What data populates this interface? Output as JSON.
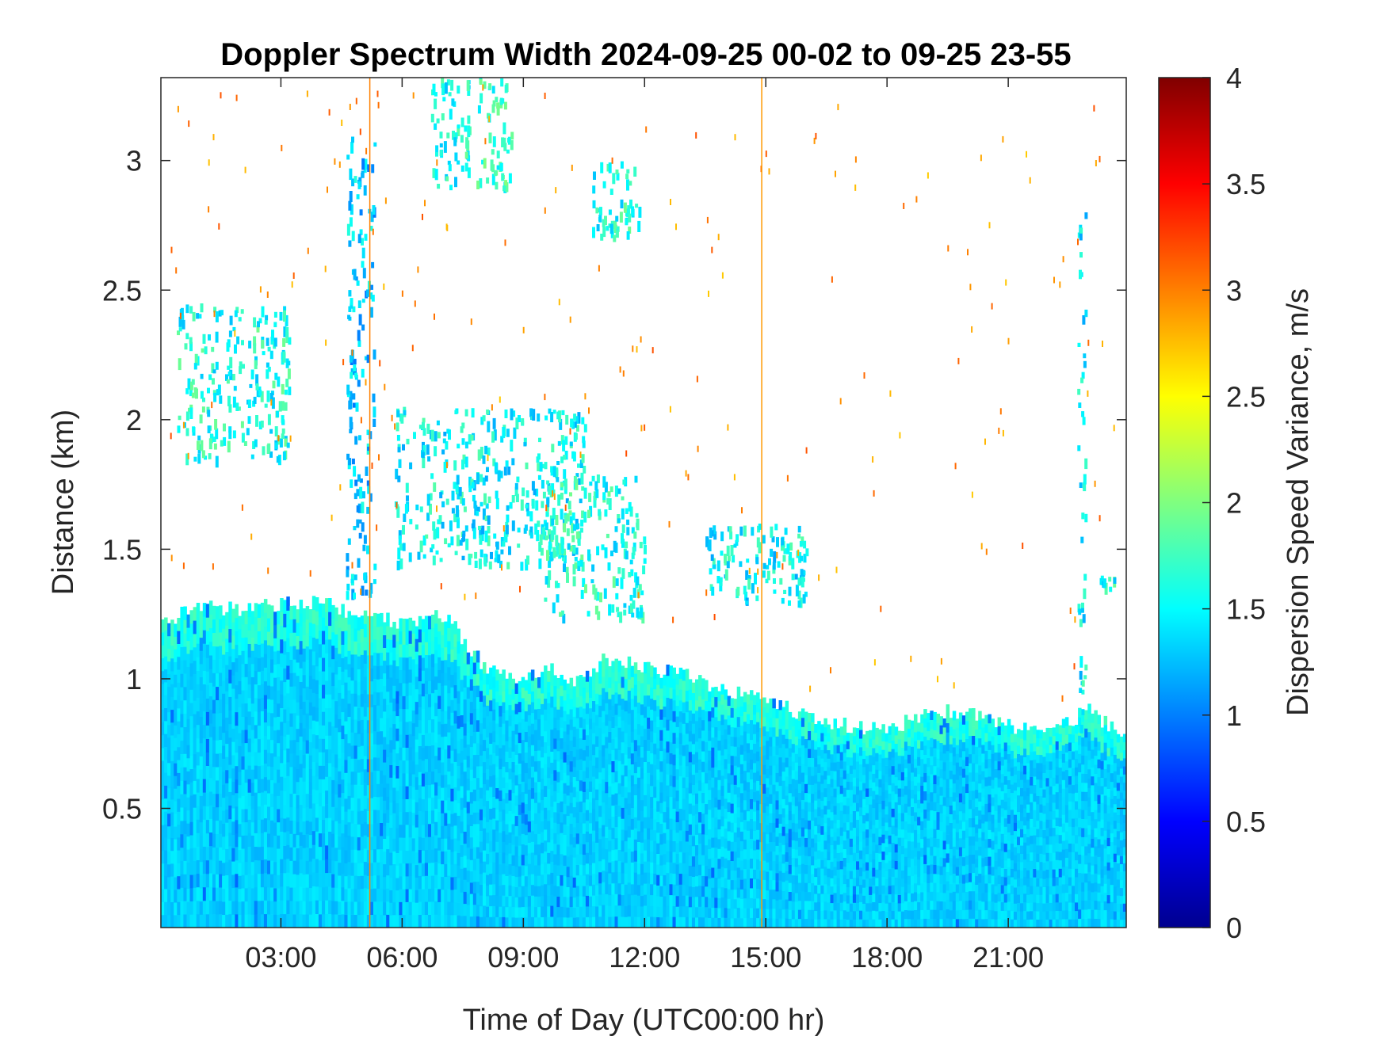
{
  "chart_data": {
    "type": "heatmap",
    "title": "Doppler Spectrum Width 2024-09-25 00-02 to 09-25 23-55",
    "xlabel": "Time of Day (UTC00:00 hr)",
    "ylabel": "Distance (km)",
    "colorbar_label": "Dispersion Speed Variance, m/s",
    "colormap": "jet",
    "colormap_stops": [
      "#00008f",
      "#0000ff",
      "#00ffff",
      "#ffff00",
      "#ff0000",
      "#800000"
    ],
    "xlim_hours": [
      0.03,
      23.92
    ],
    "ylim_km": [
      0.04,
      3.32
    ],
    "clim": [
      0,
      4
    ],
    "x_ticks": [
      {
        "hour": 3,
        "label": "03:00"
      },
      {
        "hour": 6,
        "label": "06:00"
      },
      {
        "hour": 9,
        "label": "09:00"
      },
      {
        "hour": 12,
        "label": "12:00"
      },
      {
        "hour": 15,
        "label": "15:00"
      },
      {
        "hour": 18,
        "label": "18:00"
      },
      {
        "hour": 21,
        "label": "21:00"
      }
    ],
    "y_ticks": [
      {
        "value": 0.5,
        "label": "0.5"
      },
      {
        "value": 1,
        "label": "1"
      },
      {
        "value": 1.5,
        "label": "1.5"
      },
      {
        "value": 2,
        "label": "2"
      },
      {
        "value": 2.5,
        "label": "2.5"
      },
      {
        "value": 3,
        "label": "3"
      }
    ],
    "colorbar_ticks": [
      {
        "value": 0,
        "label": "0"
      },
      {
        "value": 0.5,
        "label": "0.5"
      },
      {
        "value": 1,
        "label": "1"
      },
      {
        "value": 1.5,
        "label": "1.5"
      },
      {
        "value": 2,
        "label": "2"
      },
      {
        "value": 2.5,
        "label": "2.5"
      },
      {
        "value": 3,
        "label": "3"
      },
      {
        "value": 3.5,
        "label": "3.5"
      },
      {
        "value": 4,
        "label": "4"
      }
    ],
    "boundary_layer_top_km": [
      {
        "hour": 0.03,
        "km": 1.22
      },
      {
        "hour": 1.0,
        "km": 1.28
      },
      {
        "hour": 2.0,
        "km": 1.27
      },
      {
        "hour": 3.0,
        "km": 1.29
      },
      {
        "hour": 4.0,
        "km": 1.3
      },
      {
        "hour": 5.0,
        "km": 1.24
      },
      {
        "hour": 6.0,
        "km": 1.22
      },
      {
        "hour": 7.0,
        "km": 1.25
      },
      {
        "hour": 8.0,
        "km": 1.05
      },
      {
        "hour": 8.8,
        "km": 0.98
      },
      {
        "hour": 9.5,
        "km": 1.05
      },
      {
        "hour": 10.3,
        "km": 0.99
      },
      {
        "hour": 11.0,
        "km": 1.08
      },
      {
        "hour": 12.0,
        "km": 1.04
      },
      {
        "hour": 13.0,
        "km": 1.02
      },
      {
        "hour": 14.0,
        "km": 0.95
      },
      {
        "hour": 15.0,
        "km": 0.93
      },
      {
        "hour": 16.0,
        "km": 0.85
      },
      {
        "hour": 17.0,
        "km": 0.82
      },
      {
        "hour": 18.0,
        "km": 0.8
      },
      {
        "hour": 19.0,
        "km": 0.88
      },
      {
        "hour": 20.0,
        "km": 0.87
      },
      {
        "hour": 21.0,
        "km": 0.82
      },
      {
        "hour": 22.0,
        "km": 0.8
      },
      {
        "hour": 23.0,
        "km": 0.88
      },
      {
        "hour": 23.92,
        "km": 0.75
      }
    ],
    "cloud_layers": [
      {
        "hour_start": 0.4,
        "hour_end": 3.2,
        "km_bottom": 1.85,
        "km_top": 2.45,
        "variance": 1.6
      },
      {
        "hour_start": 4.6,
        "hour_end": 5.3,
        "km_bottom": 1.3,
        "km_top": 3.1,
        "variance": 1.3
      },
      {
        "hour_start": 5.8,
        "hour_end": 10.5,
        "km_bottom": 1.45,
        "km_top": 2.05,
        "variance": 1.5
      },
      {
        "hour_start": 9.5,
        "hour_end": 12.0,
        "km_bottom": 1.25,
        "km_top": 1.8,
        "variance": 1.6
      },
      {
        "hour_start": 6.7,
        "hour_end": 7.7,
        "km_bottom": 2.9,
        "km_top": 3.32,
        "variance": 1.6
      },
      {
        "hour_start": 7.8,
        "hour_end": 8.7,
        "km_bottom": 2.9,
        "km_top": 3.32,
        "variance": 1.7
      },
      {
        "hour_start": 10.7,
        "hour_end": 11.9,
        "km_bottom": 2.7,
        "km_top": 3.0,
        "variance": 1.6
      },
      {
        "hour_start": 13.5,
        "hour_end": 16.0,
        "km_bottom": 1.3,
        "km_top": 1.6,
        "variance": 1.5
      },
      {
        "hour_start": 22.7,
        "hour_end": 22.9,
        "km_bottom": 0.8,
        "km_top": 2.85,
        "variance": 1.5
      },
      {
        "hour_start": 23.2,
        "hour_end": 23.6,
        "km_bottom": 1.35,
        "km_top": 1.4,
        "variance": 1.6
      }
    ],
    "vertical_streaks": [
      {
        "hour": 5.2,
        "variance": 3.0
      },
      {
        "hour": 14.9,
        "variance": 2.9
      }
    ]
  }
}
